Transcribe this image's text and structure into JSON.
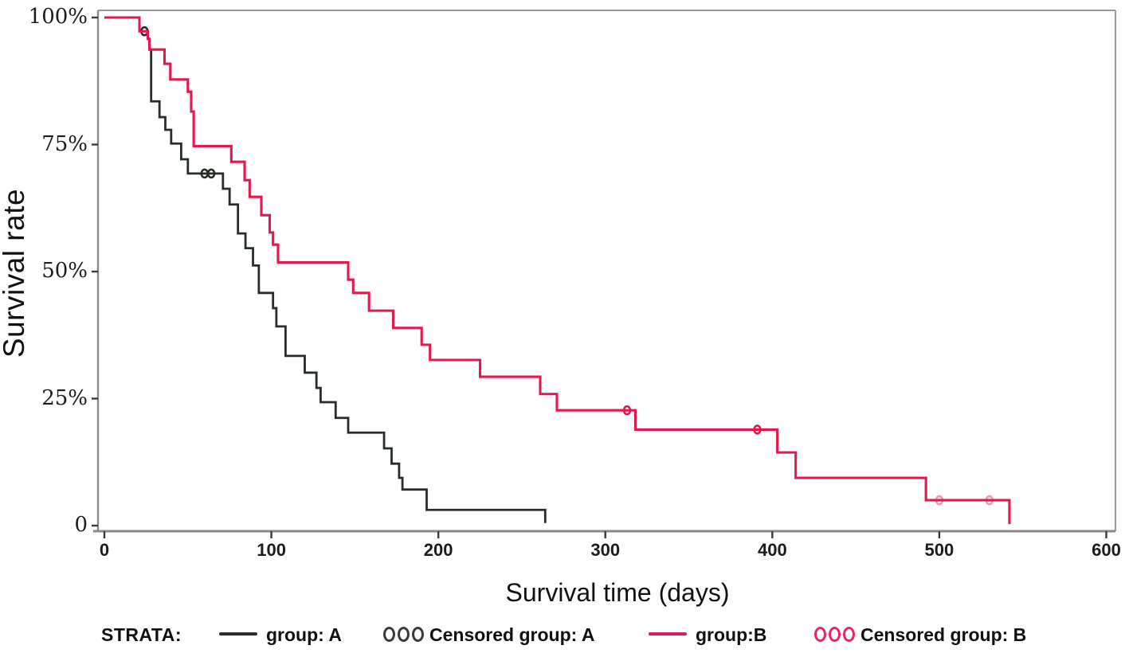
{
  "chart_data": {
    "type": "line",
    "subtype": "kaplan-meier-step",
    "title": "",
    "xlabel": "Survival time (days)",
    "ylabel": "Survival rate",
    "xlim": [
      0,
      600
    ],
    "ylim": [
      0,
      100
    ],
    "grid": false,
    "x_ticks": [
      {
        "value": 0,
        "label": "0"
      },
      {
        "value": 100,
        "label": "100"
      },
      {
        "value": 200,
        "label": "200"
      },
      {
        "value": 300,
        "label": "300"
      },
      {
        "value": 400,
        "label": "400"
      },
      {
        "value": 500,
        "label": "500"
      },
      {
        "value": 600,
        "label": "600"
      }
    ],
    "y_ticks": [
      {
        "value": 100,
        "label": "100%"
      },
      {
        "value": 75,
        "label": "75%"
      },
      {
        "value": 50,
        "label": "50%"
      },
      {
        "value": 25,
        "label": "25%"
      },
      {
        "value": 0,
        "label": "0"
      }
    ],
    "series": [
      {
        "name": "group: A",
        "color": "#262e27",
        "line_width": 2.8,
        "points": [
          [
            0,
            100
          ],
          [
            21,
            97.3
          ],
          [
            26,
            95.8
          ],
          [
            27,
            93.7
          ],
          [
            28,
            83.5
          ],
          [
            33,
            80.4
          ],
          [
            36.5,
            77.9
          ],
          [
            40,
            75.2
          ],
          [
            46,
            72.1
          ],
          [
            50,
            69.3
          ],
          [
            71,
            66.3
          ],
          [
            75,
            63.2
          ],
          [
            80,
            57.5
          ],
          [
            84.5,
            54.6
          ],
          [
            89,
            51.2
          ],
          [
            92.5,
            45.8
          ],
          [
            101,
            42.8
          ],
          [
            103,
            39.2
          ],
          [
            108.5,
            33.4
          ],
          [
            120,
            30.1
          ],
          [
            127,
            27.1
          ],
          [
            129.5,
            24.3
          ],
          [
            138.5,
            21.2
          ],
          [
            146,
            18.3
          ],
          [
            167.5,
            15.2
          ],
          [
            172,
            12.2
          ],
          [
            176.5,
            9.4
          ],
          [
            178.5,
            7.1
          ],
          [
            193,
            3.1
          ],
          [
            264,
            0.5
          ]
        ],
        "censored": [
          {
            "t": 24,
            "s": 97.3,
            "faint": false
          },
          {
            "t": 60,
            "s": 69.3,
            "faint": false
          },
          {
            "t": 64,
            "s": 69.3,
            "faint": false
          }
        ]
      },
      {
        "name": "group:B",
        "color": "#e2194b",
        "line_width": 3.1,
        "points": [
          [
            0,
            100
          ],
          [
            21,
            97.3
          ],
          [
            26,
            95.8
          ],
          [
            27,
            93.7
          ],
          [
            36,
            90.9
          ],
          [
            39.5,
            87.8
          ],
          [
            50,
            85.4
          ],
          [
            52,
            81.5
          ],
          [
            53.5,
            74.7
          ],
          [
            76,
            71.6
          ],
          [
            84,
            68.0
          ],
          [
            87,
            64.7
          ],
          [
            94,
            61.1
          ],
          [
            99,
            57.7
          ],
          [
            101,
            55.3
          ],
          [
            104,
            51.8
          ],
          [
            146,
            48.4
          ],
          [
            149,
            45.8
          ],
          [
            158.5,
            42.3
          ],
          [
            173,
            38.9
          ],
          [
            190,
            35.6
          ],
          [
            195,
            32.6
          ],
          [
            225,
            29.3
          ],
          [
            261,
            25.9
          ],
          [
            271,
            22.7
          ],
          [
            318,
            18.9
          ],
          [
            403,
            14.4
          ],
          [
            414,
            9.4
          ],
          [
            492,
            5.0
          ],
          [
            542,
            0.3
          ]
        ],
        "censored": [
          {
            "t": 313,
            "s": 22.7,
            "faint": false
          },
          {
            "t": 391,
            "s": 18.9,
            "faint": false
          },
          {
            "t": 500,
            "s": 5.0,
            "faint": true
          },
          {
            "t": 530,
            "s": 5.0,
            "faint": true
          }
        ]
      }
    ]
  },
  "legend": {
    "strata_label": "STRATA:",
    "items": [
      {
        "swatch": "line",
        "color": "#262e27",
        "label": "group: A"
      },
      {
        "swatch": "circles",
        "color": "#363d36",
        "label": "Censored group: A"
      },
      {
        "swatch": "line",
        "color": "#e2194b",
        "label": "group:B"
      },
      {
        "swatch": "circles",
        "color": "#e8246b",
        "label": "Censored group: B"
      }
    ]
  },
  "colors": {
    "axis_frame": "#9a9a9a",
    "axis_main": "#8a8a8a",
    "tick": "#3a3a3a",
    "text": "#111111"
  }
}
